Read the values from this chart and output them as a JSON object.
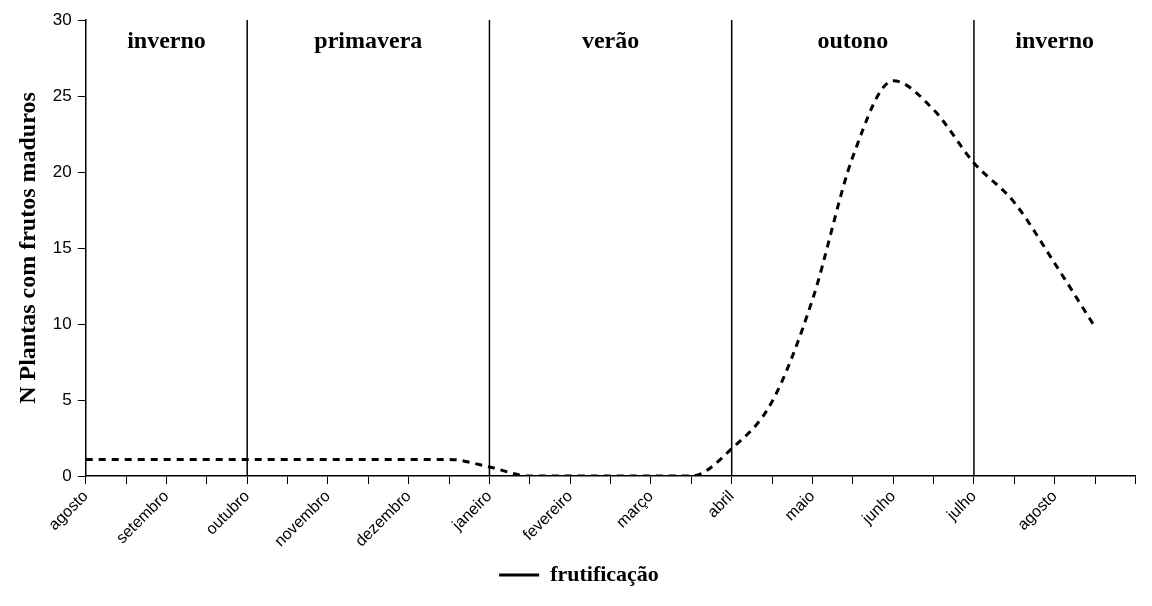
{
  "chart_data": {
    "type": "line",
    "ylabel": "N Plantas com frutos maduros",
    "categories": [
      "agosto",
      null,
      "setembro",
      null,
      "outubro",
      null,
      "novembro",
      null,
      "dezembro",
      null,
      "janeiro",
      null,
      "fevereiro",
      null,
      "março",
      null,
      "abril",
      null,
      "maio",
      null,
      "junho",
      null,
      "julho",
      null,
      "agosto",
      null,
      null
    ],
    "ylim": [
      0,
      30
    ],
    "yticks": [
      0,
      5,
      10,
      15,
      20,
      25,
      30
    ],
    "series": [
      {
        "name": "frutificação",
        "color": "#000000",
        "values": [
          1.1,
          1.1,
          1.1,
          1.1,
          1.1,
          1.1,
          1.1,
          1.1,
          1.1,
          1.1,
          0.6,
          0,
          0,
          0,
          0,
          0,
          1.8,
          4.9,
          11.6,
          21,
          26,
          24.1,
          20.6,
          18,
          14,
          9.8,
          null
        ]
      }
    ],
    "line_style": "dashed",
    "marker": "none",
    "legend": "bottom",
    "ref_lines": [
      {
        "axis": "x",
        "value": "outubro",
        "color": "#000000"
      },
      {
        "axis": "x",
        "value": "janeiro",
        "color": "#000000"
      },
      {
        "axis": "x",
        "value": "abril",
        "color": "#000000"
      },
      {
        "axis": "x",
        "value": "julho",
        "color": "#000000"
      }
    ],
    "annotations": [
      "inverno",
      "primavera",
      "verão",
      "outono",
      "inverno"
    ]
  }
}
